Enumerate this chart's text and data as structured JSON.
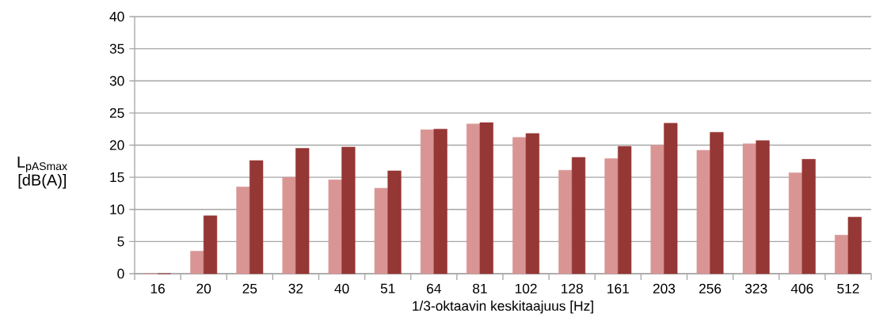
{
  "chart_data": {
    "type": "bar",
    "xlabel": "1/3-oktaavin keskitaajuus [Hz]",
    "ylabel": "L$_{pASmax}$ [dB(A)]",
    "categories": [
      "16",
      "20",
      "25",
      "32",
      "40",
      "51",
      "64",
      "81",
      "102",
      "128",
      "161",
      "203",
      "256",
      "323",
      "406",
      "512"
    ],
    "series": [
      {
        "color": "#d99594",
        "values": [
          0,
          3.5,
          13.5,
          15.0,
          14.6,
          13.3,
          22.4,
          23.3,
          21.2,
          16.1,
          17.9,
          20.0,
          19.2,
          20.2,
          15.7,
          6.0
        ]
      },
      {
        "color": "#953735",
        "values": [
          0,
          9.0,
          17.6,
          19.5,
          19.7,
          16.0,
          22.5,
          23.5,
          21.8,
          18.1,
          19.8,
          23.4,
          22.0,
          20.7,
          17.8,
          8.8
        ]
      }
    ],
    "ylim": [
      0,
      40
    ],
    "yticks": [
      0,
      5,
      10,
      15,
      20,
      25,
      30,
      35,
      40
    ],
    "grid": "y"
  }
}
